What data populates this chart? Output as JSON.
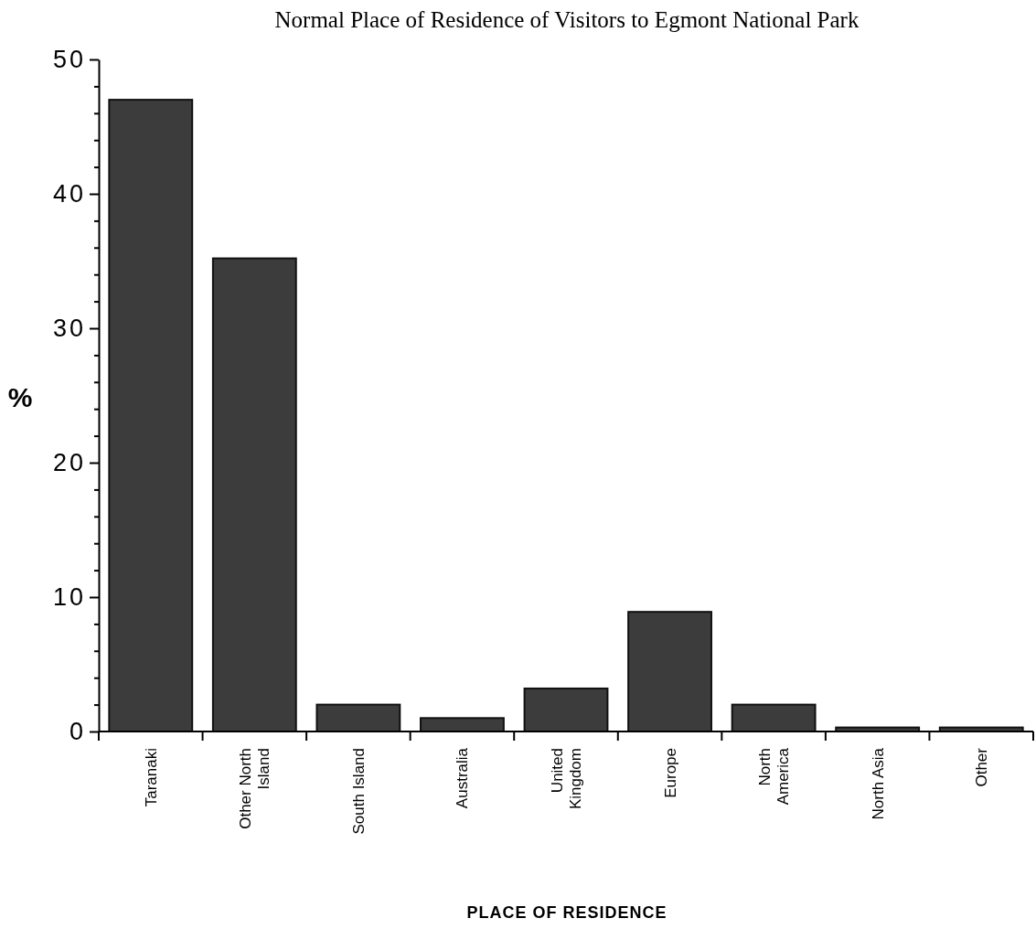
{
  "chart_data": {
    "type": "bar",
    "title": "Normal Place of Residence of Visitors to Egmont National Park",
    "xlabel": "PLACE OF RESIDENCE",
    "ylabel": "%",
    "categories": [
      "Taranaki",
      "Other North Island",
      "South Island",
      "Australia",
      "United Kingdom",
      "Europe",
      "North America",
      "North Asia",
      "Other"
    ],
    "values": [
      47,
      35.2,
      2,
      1,
      3.2,
      8.9,
      2,
      0.3,
      0.3
    ],
    "color": "#3c3c3c",
    "ylim": [
      0,
      50
    ],
    "yticks": [
      0,
      {
        "value": 2,
        "label": null
      },
      {
        "value": 4,
        "label": null
      },
      {
        "value": 6,
        "label": null
      },
      {
        "value": 8,
        "label": null
      },
      10,
      {
        "value": 12,
        "label": null
      },
      {
        "value": 14,
        "label": null
      },
      {
        "value": 16,
        "label": null
      },
      {
        "value": 18,
        "label": null
      },
      20,
      {
        "value": 22,
        "label": null
      },
      {
        "value": 24,
        "label": null
      },
      {
        "value": 26,
        "label": null
      },
      {
        "value": 28,
        "label": null
      },
      30,
      {
        "value": 32,
        "label": null
      },
      {
        "value": 34,
        "label": null
      },
      {
        "value": 36,
        "label": null
      },
      {
        "value": 38,
        "label": null
      },
      40,
      {
        "value": 42,
        "label": null
      },
      {
        "value": 44,
        "label": null
      },
      {
        "value": 46,
        "label": null
      },
      {
        "value": 48,
        "label": null
      },
      50
    ],
    "grid": false
  }
}
